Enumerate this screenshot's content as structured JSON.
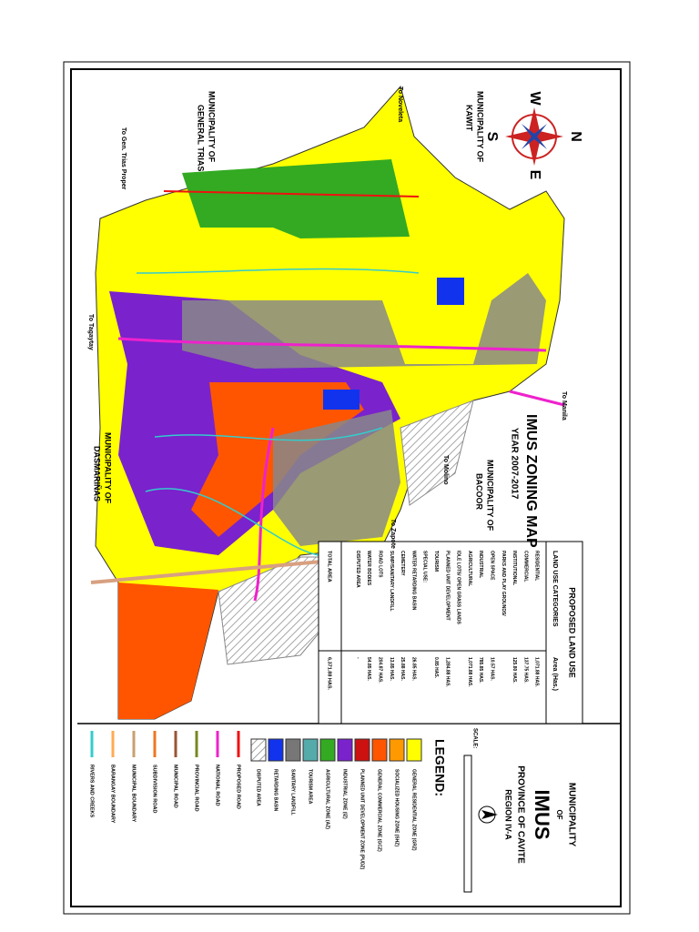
{
  "header": {
    "municipality": "MUNICIPALITY",
    "of": "OF",
    "name": "IMUS",
    "province": "PROVINCE OF CAVITE",
    "region": "REGION IV-A",
    "scale_label": "SCALE:"
  },
  "map": {
    "title": "IMUS ZONING MAP",
    "year": "YEAR 2007-2017",
    "compass": [
      "N",
      "E",
      "S",
      "W"
    ],
    "neighbors": [
      {
        "line1": "MUNICIPALITY OF",
        "line2": "KAWIT"
      },
      {
        "line1": "MUNICIPALITY OF",
        "line2": "GENERAL TRIAS"
      },
      {
        "line1": "MUNICIPALITY OF",
        "line2": "BACOOR"
      },
      {
        "line1": "MUNICIPALITY OF",
        "line2": "DASMARIÑAS"
      }
    ],
    "directions": [
      "To Noveleta",
      "To Gen. Trias Proper",
      "To Tagaytay",
      "To Manila",
      "To Molino",
      "To Zapote"
    ]
  },
  "land_use": {
    "title": "PROPOSED LAND USE",
    "columns": [
      "LAND USE CATEGORIES",
      "Area (Has.)"
    ],
    "rows": [
      [
        "RESIDENTIAL",
        "1,071.88 HAS."
      ],
      [
        "COMMERCIAL",
        "137.75 HAS."
      ],
      [
        "INSTITUTIONAL",
        "125.80 HAS."
      ],
      [
        "PARKS AND PLAY GROUNDS/",
        ""
      ],
      [
        "OPEN SPACE",
        "10.57 HAS."
      ],
      [
        "INDUSTRIAL",
        "785.85 HAS."
      ],
      [
        "AGRICULTURAL",
        "1,071.88 HAS."
      ],
      [
        "IDLE LOTS/ OPEN GRASS LANDS",
        ""
      ],
      [
        "PLANNED UNIT DEVELOPMENT",
        "1,284.88 HAS."
      ],
      [
        "TOURISM",
        "0.85 HAS."
      ],
      [
        "SPECIAL USE:",
        ""
      ],
      [
        "WATER RETARDING BASIN",
        "26.85 HAS."
      ],
      [
        "CEMETERY",
        "25.88 HAS."
      ],
      [
        "SUMP/SANITARY LANDFILL",
        "13.85 HAS."
      ],
      [
        "ROAD LOTS",
        "204.87 HAS."
      ],
      [
        "WATER BODIES",
        "54.85 HAS."
      ],
      [
        "DISPUTED AREA",
        "-"
      ]
    ],
    "total": [
      "TOTAL AREA",
      "6,371.88 HAS."
    ]
  },
  "legend": {
    "title": "LEGEND:",
    "zones": [
      {
        "label": "GENERAL RESIDENTIAL ZONE (GRZ)",
        "color": "#ffff00"
      },
      {
        "label": "SOCIALIZED HOUSING ZONE (SHZ)",
        "color": "#ff9900"
      },
      {
        "label": "GENERAL COMMERCIAL ZONE (GCZ)",
        "color": "#ff5500"
      },
      {
        "label": "PLANNED UNIT DEVELOPMENT ZONE (PUDZ)",
        "color": "#cc1111"
      },
      {
        "label": "INDUSTRIAL ZONE (IZ)",
        "color": "#7a22cc"
      },
      {
        "label": "AGRICULTURAL ZONE (AZ)",
        "color": "#33aa22"
      },
      {
        "label": "TOURISM AREA",
        "color": "#55aaaa"
      },
      {
        "label": "SANITARY LANDFILL",
        "color": "#777777"
      },
      {
        "label": "RETARDING BASIN",
        "color": "#1133ee"
      },
      {
        "label": "DISPUTED AREA",
        "color": "#cccccc"
      }
    ],
    "lines": [
      {
        "label": "PROPOSED ROAD",
        "color": "#ee1111"
      },
      {
        "label": "NATIONAL ROAD",
        "color": "#ee22cc"
      },
      {
        "label": "PROVINCIAL ROAD",
        "color": "#778822"
      },
      {
        "label": "MUNICIPAL ROAD",
        "color": "#995533"
      },
      {
        "label": "SUBDIVISION ROAD",
        "color": "#ee7722"
      },
      {
        "label": "MUNICIPAL BOUNDARY",
        "color": "#c8a070"
      },
      {
        "label": "BARANGAY BOUNDARY",
        "color": "#ffaa55"
      },
      {
        "label": "RIVERS AND CREEKS",
        "color": "#33cccc"
      }
    ]
  }
}
